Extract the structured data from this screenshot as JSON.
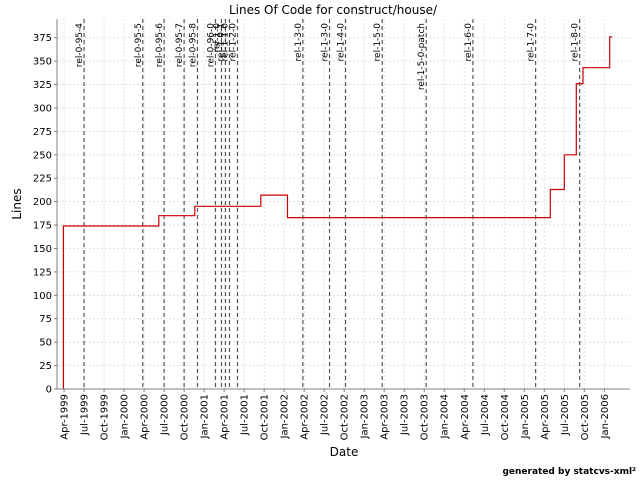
{
  "chart_data": {
    "type": "line",
    "title": "Lines Of Code for construct/house/",
    "xlabel": "Date",
    "ylabel": "Lines",
    "credit": "generated by statcvs-xml²",
    "ylim": [
      0,
      395
    ],
    "y_ticks": [
      0,
      25,
      50,
      75,
      100,
      125,
      150,
      175,
      200,
      225,
      250,
      275,
      300,
      325,
      350,
      375
    ],
    "x_ticks": [
      {
        "label": "Apr-1999",
        "month": 0
      },
      {
        "label": "Jul-1999",
        "month": 3
      },
      {
        "label": "Oct-1999",
        "month": 6
      },
      {
        "label": "Jan-2000",
        "month": 9
      },
      {
        "label": "Apr-2000",
        "month": 12
      },
      {
        "label": "Jul-2000",
        "month": 15
      },
      {
        "label": "Oct-2000",
        "month": 18
      },
      {
        "label": "Jan-2001",
        "month": 21
      },
      {
        "label": "Apr-2001",
        "month": 24
      },
      {
        "label": "Jul-2001",
        "month": 27
      },
      {
        "label": "Oct-2001",
        "month": 30
      },
      {
        "label": "Jan-2002",
        "month": 33
      },
      {
        "label": "Apr-2002",
        "month": 36
      },
      {
        "label": "Jul-2002",
        "month": 39
      },
      {
        "label": "Oct-2002",
        "month": 42
      },
      {
        "label": "Jan-2003",
        "month": 45
      },
      {
        "label": "Apr-2003",
        "month": 48
      },
      {
        "label": "Jul-2003",
        "month": 51
      },
      {
        "label": "Oct-2003",
        "month": 54
      },
      {
        "label": "Jan-2004",
        "month": 57
      },
      {
        "label": "Apr-2004",
        "month": 60
      },
      {
        "label": "Jul-2004",
        "month": 63
      },
      {
        "label": "Oct-2004",
        "month": 66
      },
      {
        "label": "Jan-2005",
        "month": 69
      },
      {
        "label": "Apr-2005",
        "month": 72
      },
      {
        "label": "Jul-2005",
        "month": 75
      },
      {
        "label": "Oct-2005",
        "month": 78
      },
      {
        "label": "Jan-2006",
        "month": 81
      }
    ],
    "x_range_months": [
      -1.06,
      84.85
    ],
    "series": [
      {
        "color": "#cc0000",
        "points": [
          {
            "month": -0.1,
            "lines": 0
          },
          {
            "month": -0.1,
            "lines": 174
          },
          {
            "month": 14.2,
            "lines": 174
          },
          {
            "month": 14.2,
            "lines": 185
          },
          {
            "month": 19.6,
            "lines": 185
          },
          {
            "month": 19.6,
            "lines": 195
          },
          {
            "month": 29.5,
            "lines": 195
          },
          {
            "month": 29.5,
            "lines": 207
          },
          {
            "month": 33.5,
            "lines": 207
          },
          {
            "month": 33.5,
            "lines": 183
          },
          {
            "month": 72.9,
            "lines": 183
          },
          {
            "month": 72.9,
            "lines": 213
          },
          {
            "month": 75.0,
            "lines": 213
          },
          {
            "month": 75.0,
            "lines": 250
          },
          {
            "month": 76.8,
            "lines": 250
          },
          {
            "month": 76.8,
            "lines": 326
          },
          {
            "month": 77.8,
            "lines": 326
          },
          {
            "month": 77.8,
            "lines": 343
          },
          {
            "month": 81.8,
            "lines": 343
          },
          {
            "month": 81.8,
            "lines": 376
          },
          {
            "month": 82.2,
            "lines": 376
          }
        ]
      }
    ],
    "releases": [
      {
        "label": "rel-0-95-4",
        "month": 3.0
      },
      {
        "label": "rel-0-95-5",
        "month": 11.8
      },
      {
        "label": "rel-0-95-6",
        "month": 15.0
      },
      {
        "label": "rel-0-95-7",
        "month": 18.0
      },
      {
        "label": "rel-0-95-8",
        "month": 20.0
      },
      {
        "label": "rel-0-96-0",
        "month": 22.7
      },
      {
        "label": "rel-1-0",
        "month": 23.6
      },
      {
        "label": "rel-1-0-1",
        "month": 24.2
      },
      {
        "label": "rel-1-1-0",
        "month": 24.8
      },
      {
        "label": "rel-1-2-0",
        "month": 26.0
      },
      {
        "label": "rel-1-3-0",
        "month": 35.8
      },
      {
        "label": "rel-1-3-0",
        "month": 39.8
      },
      {
        "label": "rel-1-4-0",
        "month": 42.2
      },
      {
        "label": "rel-1-5-0",
        "month": 47.7
      },
      {
        "label": "rel-1-5-0-patch",
        "month": 54.3
      },
      {
        "label": "rel-1-6-0",
        "month": 61.3
      },
      {
        "label": "rel-1-7-0",
        "month": 70.7
      },
      {
        "label": "rel-1-8-0",
        "month": 77.3
      }
    ],
    "grid": true,
    "legend": "none"
  }
}
